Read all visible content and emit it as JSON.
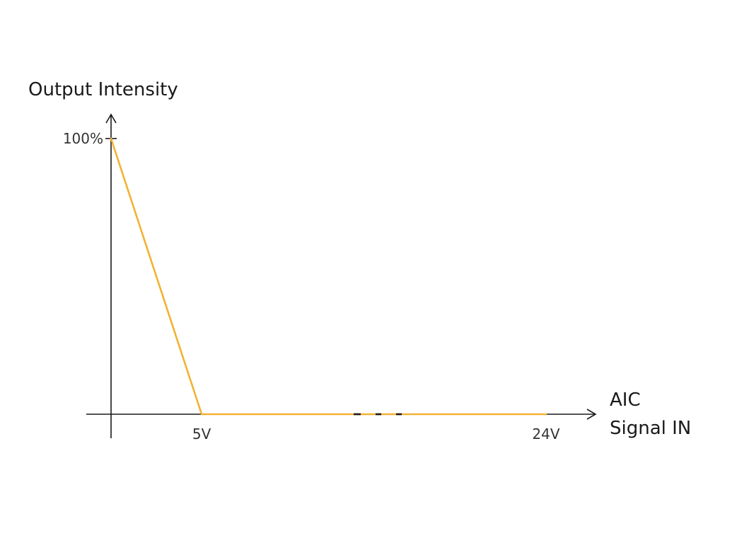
{
  "chart_data": {
    "type": "line",
    "ylabel": "Output Intensity",
    "xlabel_lines": [
      "AIC",
      "Signal IN"
    ],
    "x_ticks": [
      {
        "value": 5,
        "label": "5V"
      },
      {
        "value": 24,
        "label": "24V"
      }
    ],
    "y_ticks": [
      {
        "value": 100,
        "label": "100%"
      }
    ],
    "xlim": [
      0,
      24
    ],
    "ylim": [
      0,
      100
    ],
    "axis_break": true,
    "grid": false,
    "series": [
      {
        "color": "#f2b233",
        "points": [
          {
            "x": 0,
            "y": 100
          },
          {
            "x": 5,
            "y": 0
          },
          {
            "x": 24,
            "y": 0
          }
        ]
      }
    ]
  }
}
